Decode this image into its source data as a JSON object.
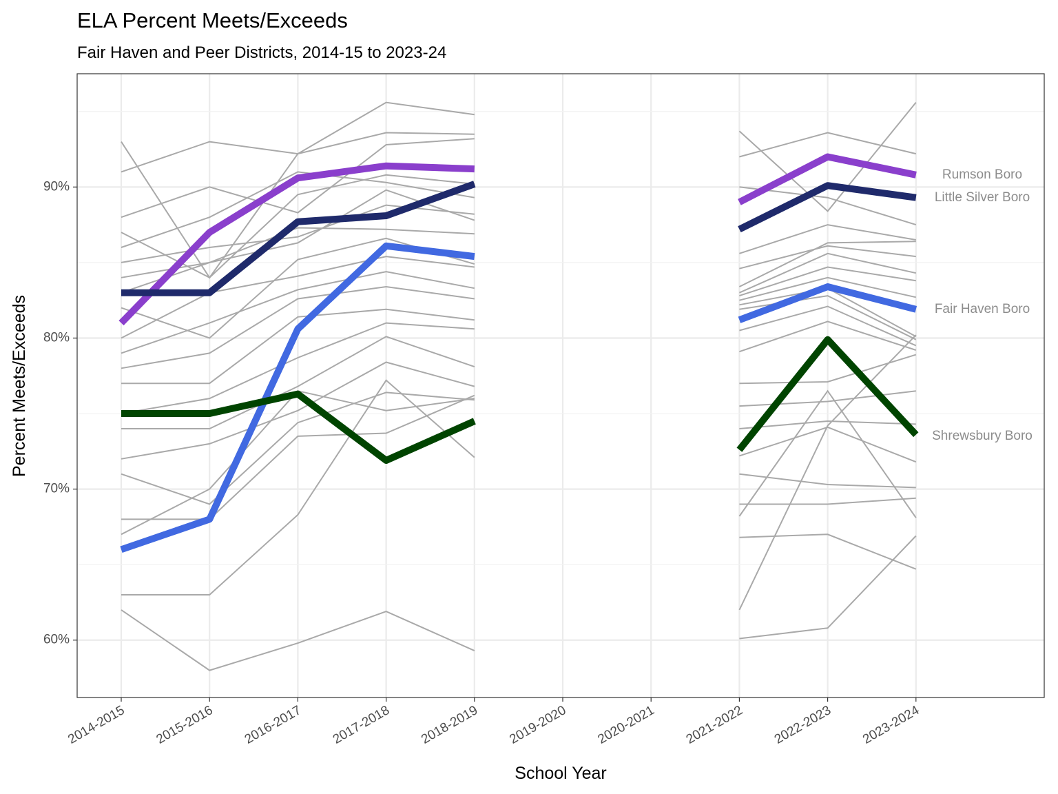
{
  "chart_data": {
    "type": "line",
    "title": "ELA Percent Meets/Exceeds",
    "subtitle": "Fair Haven and Peer Districts, 2014-15 to 2023-24",
    "xlabel": "School Year",
    "ylabel": "Percent Meets/Exceeds",
    "x": [
      "2014-2015",
      "2015-2016",
      "2016-2017",
      "2017-2018",
      "2018-2019",
      "2019-2020",
      "2020-2021",
      "2021-2022",
      "2022-2023",
      "2023-2024"
    ],
    "ylim": [
      56.2,
      97.5
    ],
    "yticks": [
      60,
      70,
      80,
      90
    ],
    "ytick_labels": [
      "60%",
      "70%",
      "80%",
      "90%"
    ],
    "grid": true,
    "legend": "none",
    "highlight_series": [
      {
        "name": "Rumson Boro",
        "color": "#8a3fcc",
        "values": [
          81,
          87,
          90.6,
          91.4,
          91.2,
          null,
          null,
          89,
          92,
          90.8
        ]
      },
      {
        "name": "Little Silver Boro",
        "color": "#1f2a6b",
        "values": [
          83,
          83,
          87.7,
          88.1,
          90.2,
          null,
          null,
          87.2,
          90.1,
          89.3
        ]
      },
      {
        "name": "Fair Haven Boro",
        "color": "#4169e1",
        "values": [
          66,
          68,
          80.6,
          86.1,
          85.4,
          null,
          null,
          81.2,
          83.4,
          81.9
        ]
      },
      {
        "name": "Shrewsbury Boro",
        "color": "#004400",
        "values": [
          75,
          75,
          76.3,
          71.9,
          74.5,
          null,
          null,
          72.6,
          79.9,
          73.6
        ]
      }
    ],
    "background_series": [
      {
        "values": [
          93,
          84,
          92.2,
          95.6,
          94.8,
          null,
          null,
          93.7,
          88.4,
          95.6
        ]
      },
      {
        "values": [
          91,
          93,
          92.2,
          93.6,
          93.5,
          null,
          null,
          92,
          93.6,
          92.2
        ]
      },
      {
        "values": [
          88,
          90,
          88.3,
          92.8,
          93.2,
          null,
          null,
          90,
          89.3,
          87.5
        ]
      },
      {
        "values": [
          87,
          84,
          89.5,
          90.8,
          90.2,
          null,
          null,
          85.6,
          87.5,
          86.5
        ]
      },
      {
        "values": [
          86,
          88,
          91,
          90.3,
          89.3,
          null,
          null,
          84.6,
          86.1,
          85.4
        ]
      },
      {
        "values": [
          85,
          86,
          86.7,
          88.8,
          88.2,
          null,
          null,
          83.4,
          86.3,
          86.4
        ]
      },
      {
        "values": [
          84,
          85,
          86.3,
          89.8,
          87.8,
          null,
          null,
          83,
          85.6,
          84.3
        ]
      },
      {
        "values": [
          83,
          85,
          87.3,
          87.2,
          86.9,
          null,
          null,
          82.8,
          84.7,
          83.8
        ]
      },
      {
        "values": [
          82,
          80,
          85.2,
          86.6,
          84.9,
          null,
          null,
          82.5,
          84,
          82.7
        ]
      },
      {
        "values": [
          80,
          83,
          84.1,
          85.4,
          84.7,
          null,
          null,
          82.2,
          83.3,
          80.1
        ]
      },
      {
        "values": [
          79,
          81,
          83.2,
          84.4,
          83.3,
          null,
          null,
          81.9,
          82.8,
          79.9
        ]
      },
      {
        "values": [
          78,
          79,
          82.6,
          83.4,
          82.6,
          null,
          null,
          80.5,
          82.1,
          79.5
        ]
      },
      {
        "values": [
          77,
          77,
          81.4,
          81.9,
          81.2,
          null,
          null,
          79.1,
          81.1,
          79.2
        ]
      },
      {
        "values": [
          75,
          76,
          78.7,
          81,
          80.6,
          null,
          null,
          77,
          77.1,
          78.9
        ]
      },
      {
        "values": [
          74,
          74,
          76.8,
          80.1,
          78.1,
          null,
          null,
          75.5,
          75.8,
          76.5
        ]
      },
      {
        "values": [
          72,
          73,
          75.2,
          78.4,
          76.8,
          null,
          null,
          74,
          74.5,
          74.3
        ]
      },
      {
        "values": [
          71,
          69,
          74.4,
          76.4,
          75.9,
          null,
          null,
          72.2,
          74.1,
          71.8
        ]
      },
      {
        "values": [
          68,
          68,
          73.5,
          73.7,
          76.2,
          null,
          null,
          71,
          70.3,
          70.1
        ]
      },
      {
        "values": [
          67,
          70,
          76.5,
          75.2,
          76,
          null,
          null,
          69,
          69,
          69.4
        ]
      },
      {
        "values": [
          63,
          63,
          68.3,
          77.2,
          72.1,
          null,
          null,
          68.2,
          76.5,
          68.1
        ]
      },
      {
        "values": [
          62,
          58,
          59.8,
          61.9,
          59.3,
          null,
          null,
          66.8,
          67,
          64.7
        ]
      },
      {
        "values": null,
        "values_2122": [
          62,
          74.2,
          80.2
        ]
      },
      {
        "values": null,
        "values_2122": [
          60.1,
          60.8,
          66.9
        ]
      }
    ]
  }
}
